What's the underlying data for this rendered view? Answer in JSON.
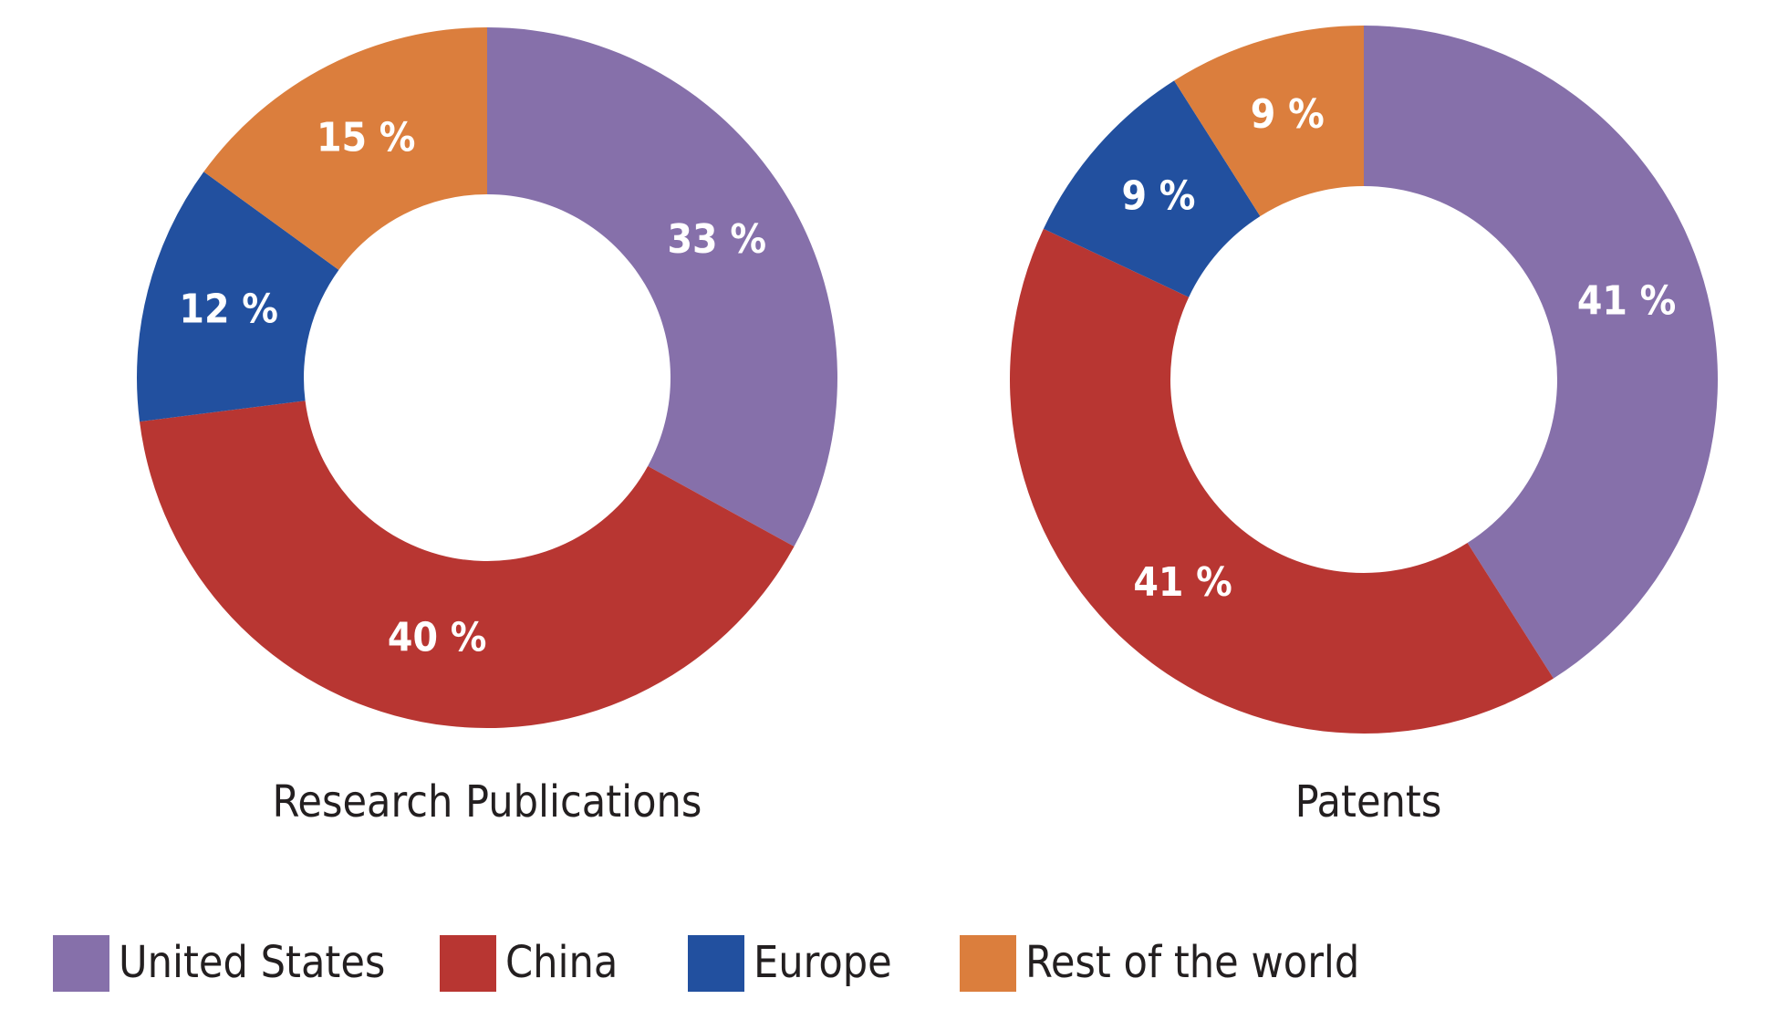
{
  "chart_data": [
    {
      "type": "pie",
      "title": "Research Publications",
      "categories": [
        "United States",
        "China",
        "Europe",
        "Rest of the world"
      ],
      "values": [
        33,
        40,
        12,
        15
      ],
      "labels": [
        "33 %",
        "40 %",
        "12 %",
        "15 %"
      ],
      "unit": "%"
    },
    {
      "type": "pie",
      "title": "Patents",
      "categories": [
        "United States",
        "China",
        "Europe",
        "Rest of the world"
      ],
      "values": [
        41,
        41,
        9,
        9
      ],
      "labels": [
        "41 %",
        "41 %",
        "9 %",
        "9 %"
      ],
      "unit": "%"
    }
  ],
  "legend": {
    "placement": "bottom",
    "items": [
      {
        "label": "United States",
        "color": "#8670aa"
      },
      {
        "label": "China",
        "color": "#b83632"
      },
      {
        "label": "Europe",
        "color": "#22509f"
      },
      {
        "label": "Rest of the world",
        "color": "#db7e3d"
      }
    ]
  }
}
